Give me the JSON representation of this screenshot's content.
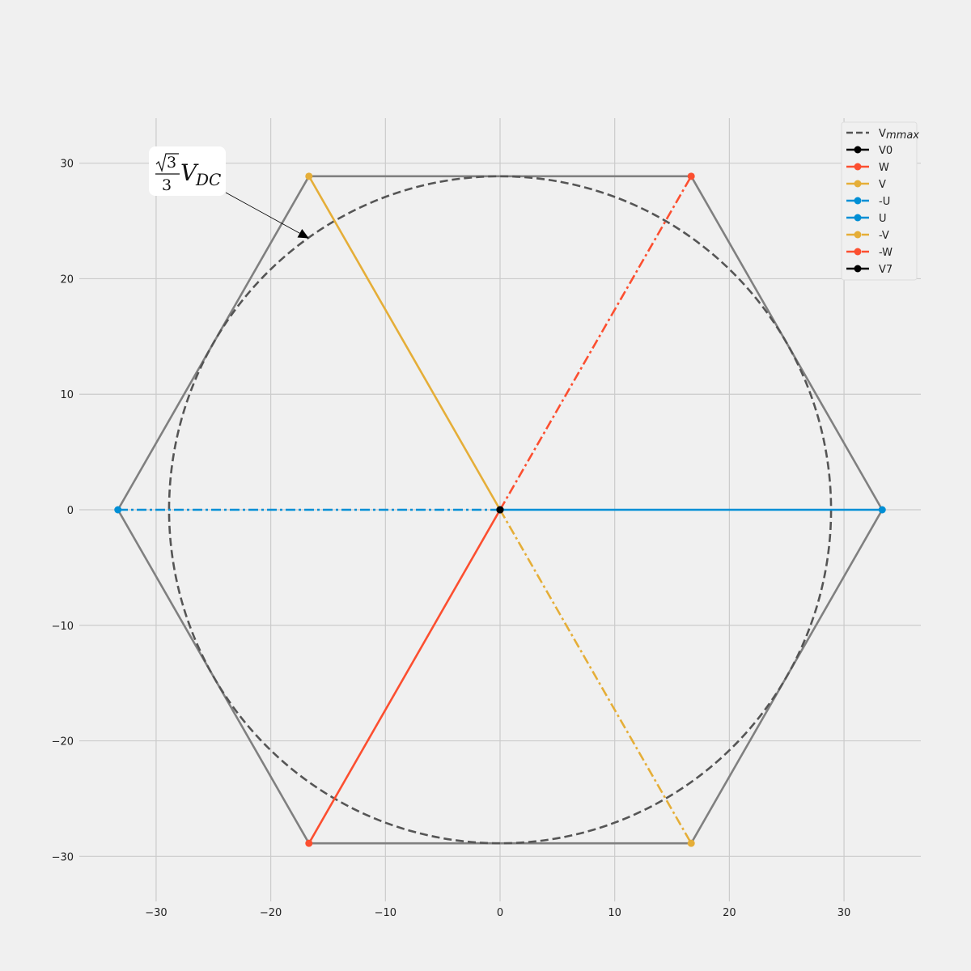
{
  "chart_data": {
    "type": "line",
    "title": "",
    "xlabel": "",
    "ylabel": "",
    "xlim": [
      -36.7,
      36.7
    ],
    "ylim": [
      -33.9,
      33.9
    ],
    "xticks": [
      -30,
      -20,
      -10,
      0,
      10,
      20,
      30
    ],
    "yticks": [
      -30,
      -20,
      -10,
      0,
      10,
      20,
      30
    ],
    "xtick_labels": [
      "−30",
      "−20",
      "−10",
      "0",
      "10",
      "20",
      "30"
    ],
    "ytick_labels": [
      "−30",
      "−20",
      "−10",
      "0",
      "10",
      "20",
      "30"
    ],
    "grid": true,
    "hexagon": {
      "color": "#808080",
      "vertices": [
        [
          33.33,
          0
        ],
        [
          16.67,
          28.87
        ],
        [
          -16.67,
          28.87
        ],
        [
          -33.33,
          0
        ],
        [
          -16.67,
          -28.87
        ],
        [
          16.67,
          -28.87
        ]
      ]
    },
    "circle": {
      "name": "V",
      "name_sub": "mmax",
      "radius": 28.87,
      "color": "#555555",
      "style": "dashed"
    },
    "series": [
      {
        "name": "V0",
        "color": "#000000",
        "style": "solid",
        "x": [
          0
        ],
        "y": [
          0
        ]
      },
      {
        "name": "W",
        "color": "#fc4f30",
        "style": "solid",
        "x": [
          0,
          -16.67
        ],
        "y": [
          0,
          -28.87
        ]
      },
      {
        "name": "V",
        "color": "#e5ae38",
        "style": "solid",
        "x": [
          0,
          -16.67
        ],
        "y": [
          0,
          28.87
        ]
      },
      {
        "name": "-U",
        "color": "#008fd5",
        "style": "dashdot",
        "x": [
          0,
          -33.33
        ],
        "y": [
          0,
          0
        ]
      },
      {
        "name": "U",
        "color": "#008fd5",
        "style": "solid",
        "x": [
          0,
          33.33
        ],
        "y": [
          0,
          0
        ]
      },
      {
        "name": "-V",
        "color": "#e5ae38",
        "style": "dashdot",
        "x": [
          0,
          16.67
        ],
        "y": [
          0,
          -28.87
        ]
      },
      {
        "name": "-W",
        "color": "#fc4f30",
        "style": "dashdot",
        "x": [
          0,
          16.67
        ],
        "y": [
          0,
          28.87
        ]
      },
      {
        "name": "V7",
        "color": "#000000",
        "style": "solid",
        "x": [
          0
        ],
        "y": [
          0
        ]
      }
    ],
    "legend_position": "top-right",
    "annotation": {
      "numerator_root": "3",
      "denominator": "3",
      "symbol": "V",
      "subscript": "DC",
      "arrow_target": [
        -16.67,
        23.5
      ]
    }
  }
}
